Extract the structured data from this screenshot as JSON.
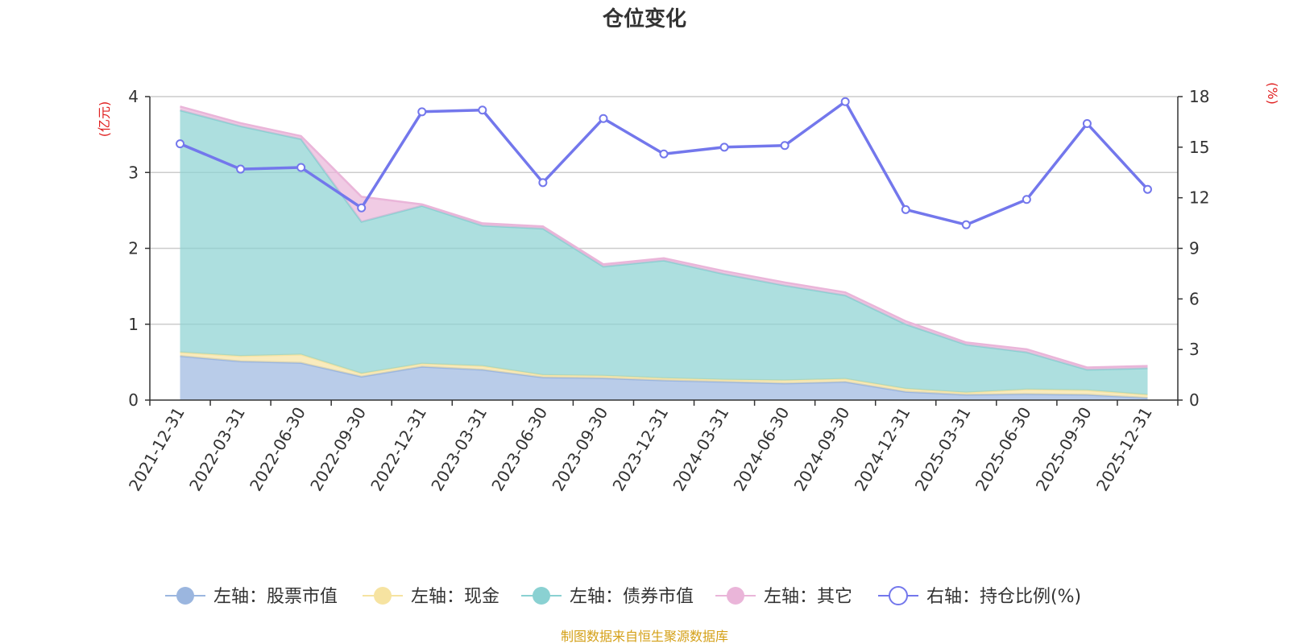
{
  "chart_data": {
    "type": "area",
    "title": "仓位变化",
    "left_axis_unit": "(亿元)",
    "right_axis_unit": "(%)",
    "left_ylim": [
      0,
      4
    ],
    "left_ticks": [
      "0",
      "1",
      "2",
      "3",
      "4"
    ],
    "right_ylim": [
      0,
      18
    ],
    "right_ticks": [
      "0",
      "3",
      "6",
      "9",
      "12",
      "15",
      "18"
    ],
    "grid": true,
    "legend_position": "bottom",
    "categories": [
      "2021-12-31",
      "2022-03-31",
      "2022-06-30",
      "2022-09-30",
      "2022-12-31",
      "2023-03-31",
      "2023-06-30",
      "2023-09-30",
      "2023-12-31",
      "2024-03-31",
      "2024-06-30",
      "2024-09-30",
      "2024-12-31",
      "2025-03-31",
      "2025-06-30",
      "2025-09-30",
      "2025-12-31"
    ],
    "series": [
      {
        "name": "左轴：股票市值",
        "axis": "left",
        "kind": "stacked-area",
        "color": "#9bb6df",
        "values": [
          0.58,
          0.51,
          0.49,
          0.31,
          0.44,
          0.4,
          0.3,
          0.29,
          0.26,
          0.24,
          0.22,
          0.24,
          0.11,
          0.07,
          0.08,
          0.07,
          0.03
        ]
      },
      {
        "name": "左轴：现金",
        "axis": "left",
        "kind": "stacked-area",
        "color": "#f6e3a1",
        "values": [
          0.05,
          0.07,
          0.11,
          0.04,
          0.04,
          0.05,
          0.03,
          0.03,
          0.03,
          0.03,
          0.04,
          0.04,
          0.04,
          0.03,
          0.06,
          0.06,
          0.04
        ]
      },
      {
        "name": "左轴：债券市值",
        "axis": "left",
        "kind": "stacked-area",
        "color": "#8ad1d2",
        "values": [
          3.19,
          3.03,
          2.84,
          2.0,
          2.08,
          1.85,
          1.93,
          1.44,
          1.55,
          1.39,
          1.25,
          1.1,
          0.85,
          0.63,
          0.49,
          0.27,
          0.35
        ]
      },
      {
        "name": "左轴：其它",
        "axis": "left",
        "kind": "stacked-area",
        "color": "#eab5d9",
        "values": [
          0.05,
          0.04,
          0.04,
          0.33,
          0.02,
          0.03,
          0.03,
          0.03,
          0.03,
          0.04,
          0.04,
          0.04,
          0.04,
          0.03,
          0.04,
          0.03,
          0.03
        ]
      },
      {
        "name": "右轴：持仓比例(%)",
        "axis": "right",
        "kind": "line",
        "color": "#7377ec",
        "values": [
          15.2,
          13.7,
          13.8,
          11.4,
          17.1,
          17.2,
          12.9,
          16.7,
          14.6,
          15.0,
          15.1,
          17.7,
          11.3,
          10.4,
          11.9,
          16.4,
          12.5
        ]
      }
    ]
  },
  "footer": {
    "source": "制图数据来自恒生聚源数据库"
  }
}
